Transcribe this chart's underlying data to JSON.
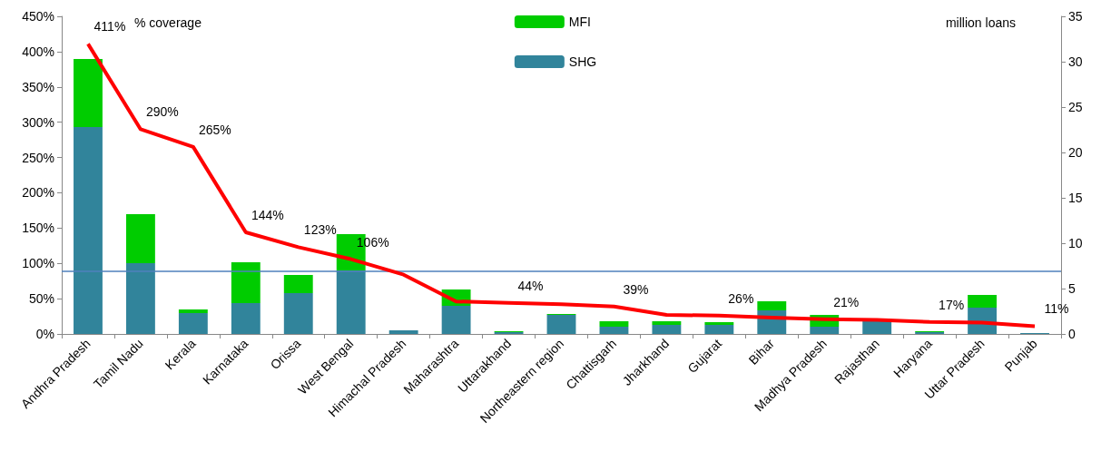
{
  "chart_data": {
    "type": "bar",
    "stacked": true,
    "categories": [
      "Andhra Pradesh",
      "Tamil Nadu",
      "Kerala",
      "Karnataka",
      "Orissa",
      "West Bengal",
      "Himachal Pradesh",
      "Maharashtra",
      "Uttarakhand",
      "Northeastern region",
      "Chattisgarh",
      "Jharkhand",
      "Gujarat",
      "Bihar",
      "Madhya Pradesh",
      "Rajasthan",
      "Haryana",
      "Uttar Pradesh",
      "Punjab"
    ],
    "ylabel": "% coverage",
    "y2label": "million loans",
    "series": [
      {
        "name": "SHG",
        "axis": "y2",
        "color": "#31849b",
        "values": [
          22.8,
          7.8,
          2.3,
          3.4,
          4.5,
          7.0,
          0.4,
          3.1,
          0.2,
          2.1,
          0.8,
          1.0,
          1.0,
          2.6,
          0.8,
          1.5,
          0.2,
          2.9,
          0.1
        ]
      },
      {
        "name": "MFI",
        "axis": "y2",
        "color": "#00cc00",
        "values": [
          7.5,
          5.4,
          0.4,
          4.5,
          2.0,
          4.0,
          0,
          1.8,
          0.1,
          0.1,
          0.6,
          0.4,
          0.3,
          1.0,
          1.3,
          null,
          0.1,
          1.4,
          0
        ]
      },
      {
        "type": "line",
        "axis": "y",
        "color": "#ff0000",
        "values": [
          411,
          290,
          265,
          144,
          123,
          106,
          84,
          46,
          44,
          42,
          39,
          27,
          26,
          23,
          21,
          20,
          17,
          16,
          11
        ],
        "value_labels": [
          "411%",
          "290%",
          "265%",
          "144%",
          "123%",
          "106%",
          null,
          null,
          "44%",
          null,
          "39%",
          null,
          "26%",
          null,
          "21%",
          null,
          "17%",
          null,
          "11%"
        ]
      }
    ],
    "ylim": [
      0,
      450
    ],
    "yticks": [
      {
        "value": 0,
        "label": "0%"
      },
      {
        "value": 50,
        "label": "50%"
      },
      {
        "value": 100,
        "label": "100%"
      },
      {
        "value": 150,
        "label": "150%"
      },
      {
        "value": 200,
        "label": "200%"
      },
      {
        "value": 250,
        "label": "250%"
      },
      {
        "value": 300,
        "label": "300%"
      },
      {
        "value": 350,
        "label": "350%"
      },
      {
        "value": 400,
        "label": "400%"
      },
      {
        "value": 450,
        "label": "450%"
      }
    ],
    "y2lim": [
      0,
      35
    ],
    "y2ticks": [
      0,
      5,
      10,
      15,
      20,
      25,
      30,
      35
    ],
    "ref_lines": [
      {
        "axis": "y",
        "value": 89,
        "label": null,
        "color": "#4f81bd"
      }
    ],
    "legend": "top",
    "grid": false,
    "marker": "none"
  }
}
